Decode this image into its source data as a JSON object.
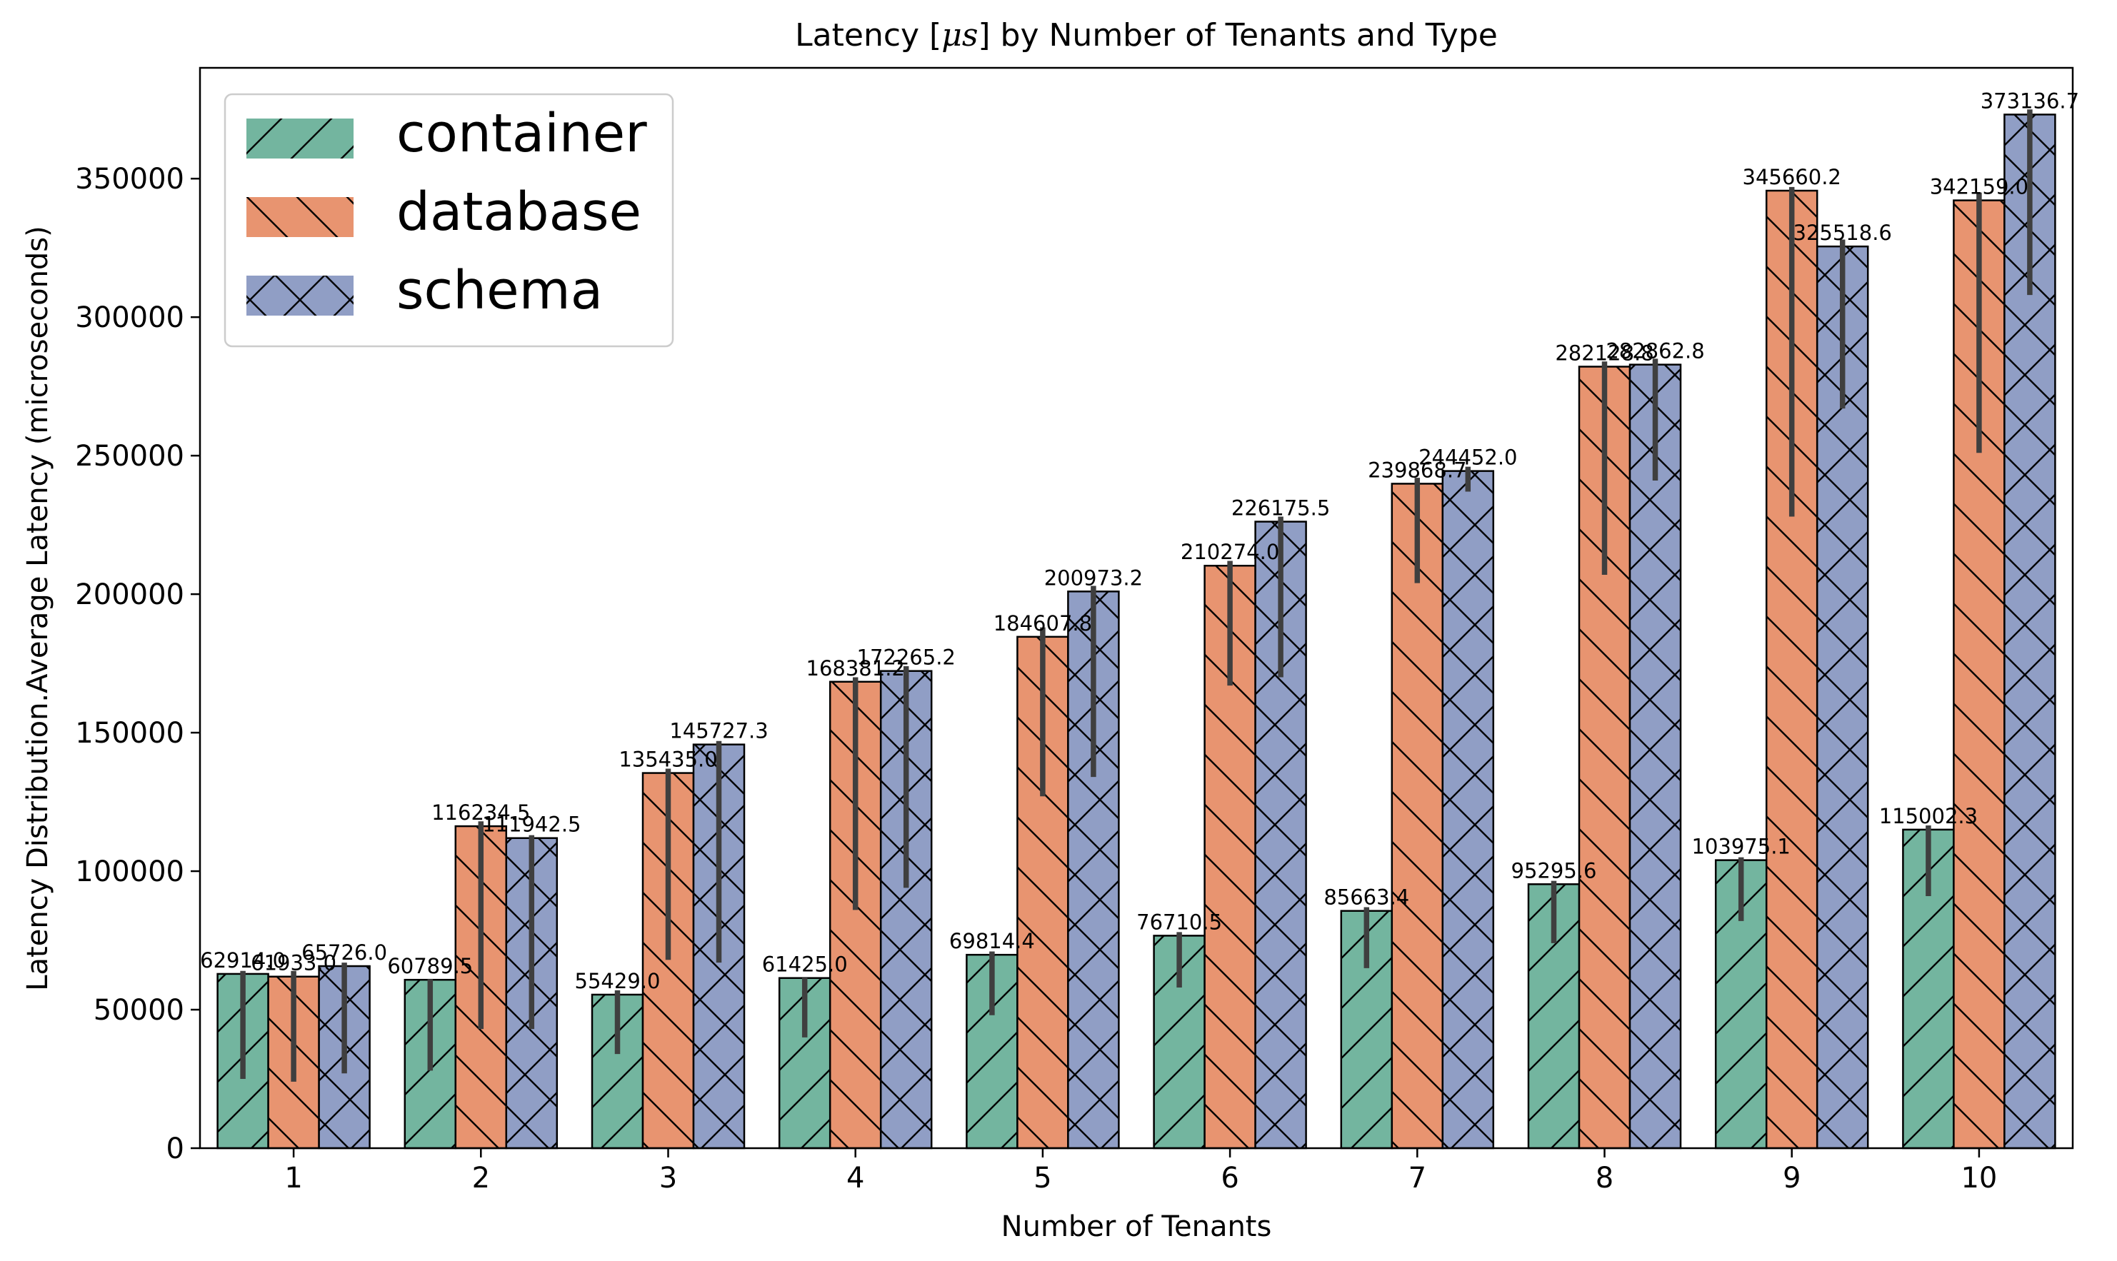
{
  "chart_data": {
    "type": "bar",
    "title": "Latency [μs] by Number of Tenants and Type",
    "title_prefix": "Latency [",
    "title_math": "μs",
    "title_suffix": "] by Number of Tenants and Type",
    "xlabel": "Number of Tenants",
    "ylabel": "Latency Distribution.Average Latency (microseconds)",
    "categories": [
      "1",
      "2",
      "3",
      "4",
      "5",
      "6",
      "7",
      "8",
      "9",
      "10"
    ],
    "ylim": [
      0,
      390000
    ],
    "yticks": [
      "0",
      "50000",
      "100000",
      "150000",
      "200000",
      "250000",
      "300000",
      "350000"
    ],
    "ytick_values": [
      0,
      50000,
      100000,
      150000,
      200000,
      250000,
      300000,
      350000
    ],
    "grid": false,
    "legend_position": "top-left",
    "series": [
      {
        "name": "container",
        "color": "#73b59f",
        "hatch": "/",
        "values": [
          62914.0,
          60789.5,
          55429.0,
          61425.0,
          69814.4,
          76710.5,
          85663.4,
          95295.6,
          103975.1,
          115002.3
        ],
        "labels": [
          "62914.0",
          "60789.5",
          "55429.0",
          "61425.0",
          "69814.4",
          "76710.5",
          "85663.4",
          "95295.6",
          "103975.1",
          "115002.3"
        ],
        "err_low": [
          25000,
          28000,
          34000,
          40000,
          48000,
          58000,
          65000,
          74000,
          82000,
          91000
        ],
        "err_high": [
          64000,
          61000,
          57000,
          61500,
          71000,
          78000,
          87000,
          96500,
          105000,
          116500
        ]
      },
      {
        "name": "database",
        "color": "#e89470",
        "hatch": "\\",
        "values": [
          61933.0,
          116234.5,
          135435.0,
          168381.2,
          184607.8,
          210274.0,
          239868.7,
          282128.8,
          345660.2,
          342159.0
        ],
        "labels": [
          "61933.0",
          "116234.5",
          "135435.0",
          "168381.2",
          "184607.8",
          "210274.0",
          "239868.7",
          "282128.8",
          "345660.2",
          "342159.0"
        ],
        "err_low": [
          24000,
          43000,
          68000,
          86000,
          127000,
          167000,
          204000,
          207000,
          228000,
          251000
        ],
        "err_high": [
          64000,
          118000,
          137000,
          170000,
          188000,
          212000,
          242000,
          284000,
          347000,
          345000
        ]
      },
      {
        "name": "schema",
        "color": "#909ec5",
        "hatch": "x",
        "values": [
          65726.0,
          111942.5,
          145727.3,
          172265.2,
          200973.2,
          226175.5,
          244452.0,
          282862.8,
          325518.6,
          373136.7
        ],
        "labels": [
          "65726.0",
          "111942.5",
          "145727.3",
          "172265.2",
          "200973.2",
          "226175.5",
          "244452.0",
          "282862.8",
          "325518.6",
          "373136.7"
        ],
        "err_low": [
          27000,
          43000,
          67000,
          94000,
          134000,
          170000,
          237000,
          241000,
          267000,
          308000
        ],
        "err_high": [
          67000,
          113000,
          147000,
          174000,
          203000,
          228000,
          246000,
          285000,
          328000,
          375000
        ]
      }
    ]
  }
}
